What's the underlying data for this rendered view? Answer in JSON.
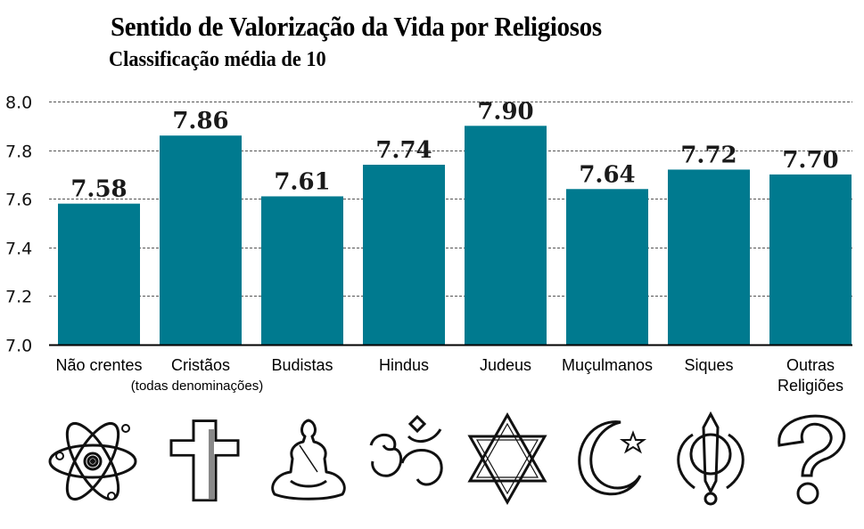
{
  "chart_data": {
    "type": "bar",
    "title": "Sentido de Valorização da Vida por Religiosos",
    "subtitle": "Classificação média de 10",
    "xlabel": "",
    "ylabel": "",
    "ylim": [
      7.0,
      8.0
    ],
    "yticks": [
      "7.0",
      "7.2",
      "7.4",
      "7.6",
      "7.8",
      "8.0"
    ],
    "grid": true,
    "categories": [
      "Não crentes",
      "Cristãos",
      "Budistas",
      "Hindus",
      "Judeus",
      "Muçulmanos",
      "Siques",
      "Outras Religiões"
    ],
    "category_lines": [
      [
        "Não crentes"
      ],
      [
        "Cristãos"
      ],
      [
        "Budistas"
      ],
      [
        "Hindus"
      ],
      [
        "Judeus"
      ],
      [
        "Muçulmanos"
      ],
      [
        "Siques"
      ],
      [
        "Outras",
        "Religiões"
      ]
    ],
    "category_note": "(todas denominações)",
    "values": [
      7.58,
      7.86,
      7.61,
      7.74,
      7.9,
      7.64,
      7.72,
      7.7
    ],
    "value_labels": [
      "7.58",
      "7.86",
      "7.61",
      "7.74",
      "7.90",
      "7.64",
      "7.72",
      "7.70"
    ],
    "bar_color": "#007a8f"
  },
  "icons": [
    "atom-icon",
    "cross-icon",
    "buddha-icon",
    "om-icon",
    "star-of-david-icon",
    "crescent-star-icon",
    "khanda-icon",
    "question-mark-icon"
  ]
}
